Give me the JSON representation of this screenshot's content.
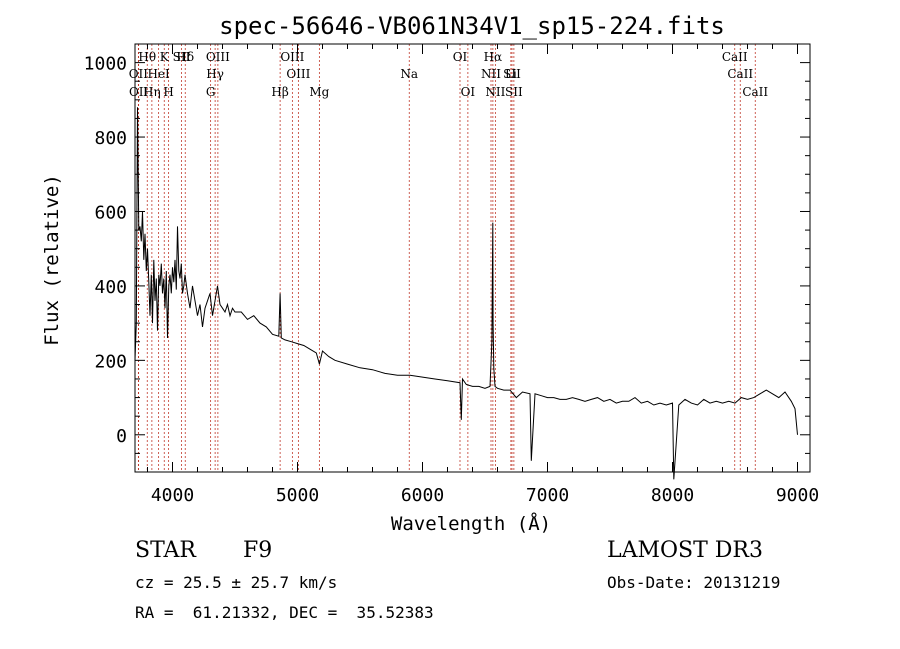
{
  "chart_data": {
    "type": "line",
    "title": "spec-56646-VB061N34V1_sp15-224.fits",
    "xlabel": "Wavelength (Å)",
    "ylabel": "Flux (relative)",
    "xlim": [
      3700,
      9100
    ],
    "ylim": [
      -100,
      1050
    ],
    "x_ticks": [
      4000,
      5000,
      6000,
      7000,
      8000,
      9000
    ],
    "y_ticks": [
      0,
      200,
      400,
      600,
      800,
      1000
    ],
    "grid": false,
    "series": [
      {
        "name": "flux",
        "x": [
          3700,
          3710,
          3720,
          3730,
          3740,
          3750,
          3760,
          3770,
          3780,
          3790,
          3800,
          3810,
          3820,
          3830,
          3840,
          3850,
          3860,
          3870,
          3880,
          3890,
          3900,
          3910,
          3920,
          3930,
          3940,
          3950,
          3960,
          3970,
          3980,
          3990,
          4000,
          4010,
          4020,
          4030,
          4040,
          4050,
          4060,
          4070,
          4080,
          4090,
          4100,
          4120,
          4140,
          4160,
          4180,
          4200,
          4220,
          4240,
          4260,
          4280,
          4300,
          4320,
          4340,
          4360,
          4380,
          4400,
          4420,
          4440,
          4460,
          4480,
          4500,
          4550,
          4600,
          4650,
          4700,
          4750,
          4800,
          4850,
          4861,
          4870,
          4900,
          4950,
          5000,
          5050,
          5100,
          5150,
          5175,
          5200,
          5250,
          5300,
          5400,
          5500,
          5600,
          5700,
          5800,
          5900,
          6000,
          6100,
          6200,
          6300,
          6310,
          6320,
          6350,
          6400,
          6450,
          6500,
          6540,
          6555,
          6562,
          6565,
          6570,
          6580,
          6600,
          6650,
          6700,
          6750,
          6800,
          6860,
          6870,
          6900,
          6950,
          7000,
          7050,
          7100,
          7150,
          7200,
          7250,
          7300,
          7350,
          7400,
          7450,
          7500,
          7550,
          7600,
          7650,
          7700,
          7750,
          7800,
          7850,
          7900,
          7950,
          8000,
          8010,
          8050,
          8100,
          8150,
          8200,
          8250,
          8300,
          8350,
          8400,
          8450,
          8500,
          8550,
          8600,
          8650,
          8700,
          8750,
          8800,
          8850,
          8900,
          8950,
          8980,
          9000
        ],
        "values": [
          200,
          300,
          880,
          550,
          560,
          520,
          600,
          470,
          540,
          440,
          500,
          410,
          320,
          430,
          300,
          470,
          360,
          420,
          280,
          430,
          400,
          460,
          380,
          420,
          340,
          440,
          260,
          400,
          430,
          380,
          450,
          410,
          470,
          390,
          560,
          440,
          420,
          460,
          380,
          400,
          430,
          380,
          340,
          400,
          360,
          320,
          350,
          290,
          340,
          360,
          380,
          320,
          360,
          400,
          350,
          340,
          330,
          350,
          320,
          340,
          330,
          330,
          310,
          320,
          300,
          290,
          270,
          265,
          380,
          260,
          255,
          250,
          245,
          240,
          230,
          220,
          190,
          225,
          210,
          200,
          190,
          180,
          175,
          165,
          160,
          160,
          155,
          150,
          145,
          140,
          40,
          150,
          135,
          130,
          130,
          125,
          130,
          250,
          570,
          300,
          180,
          130,
          125,
          120,
          120,
          100,
          115,
          110,
          -70,
          110,
          105,
          100,
          100,
          95,
          95,
          100,
          95,
          90,
          95,
          100,
          90,
          95,
          85,
          90,
          90,
          100,
          85,
          90,
          80,
          85,
          80,
          85,
          -120,
          80,
          95,
          85,
          80,
          95,
          85,
          90,
          85,
          90,
          85,
          100,
          95,
          100,
          110,
          120,
          110,
          100,
          115,
          90,
          70,
          0
        ]
      }
    ],
    "lines": [
      {
        "name": "OII",
        "x": 3727
      },
      {
        "name": "OII",
        "x": 3729
      },
      {
        "name": "Hθ",
        "x": 3798
      },
      {
        "name": "Hη",
        "x": 3835
      },
      {
        "name": "HeI",
        "x": 3889
      },
      {
        "name": "K",
        "x": 3934
      },
      {
        "name": "H",
        "x": 3969
      },
      {
        "name": "SII",
        "x": 4072
      },
      {
        "name": "Hδ",
        "x": 4102
      },
      {
        "name": "G",
        "x": 4305
      },
      {
        "name": "Hγ",
        "x": 4341
      },
      {
        "name": "OIII",
        "x": 4363
      },
      {
        "name": "Hβ",
        "x": 4861
      },
      {
        "name": "OIII",
        "x": 4959
      },
      {
        "name": "OIII",
        "x": 5007
      },
      {
        "name": "Mg",
        "x": 5175
      },
      {
        "name": "Na",
        "x": 5894
      },
      {
        "name": "OI",
        "x": 6300
      },
      {
        "name": "OI",
        "x": 6363
      },
      {
        "name": "NII",
        "x": 6548
      },
      {
        "name": "Hα",
        "x": 6563
      },
      {
        "name": "NII",
        "x": 6583
      },
      {
        "name": "Li",
        "x": 6707
      },
      {
        "name": "SII",
        "x": 6716
      },
      {
        "name": "SII",
        "x": 6731
      },
      {
        "name": "CaII",
        "x": 8498
      },
      {
        "name": "CaII",
        "x": 8542
      },
      {
        "name": "CaII",
        "x": 8662
      }
    ],
    "line_label_rows": [
      [
        "Hθ",
        "K",
        "Hδ",
        "OIII",
        "OIII",
        "OI",
        "Hα",
        "SII",
        "CaII"
      ],
      [
        "OII",
        "HeI",
        "SII",
        "Hγ",
        "OIII",
        "Na",
        "NII",
        "Li",
        "CaII"
      ],
      [
        "OII",
        "Hη",
        "H",
        "G",
        "Hβ",
        "Mg",
        "OI",
        "NII",
        "SII",
        "CaII"
      ]
    ]
  },
  "info": {
    "class": "STAR",
    "subclass": "F9",
    "survey": "LAMOST DR3",
    "cz": "cz = 25.5 ± 25.7 km/s",
    "obs_date": "Obs-Date: 20131219",
    "coords": "RA =  61.21332, DEC =  35.52383"
  }
}
